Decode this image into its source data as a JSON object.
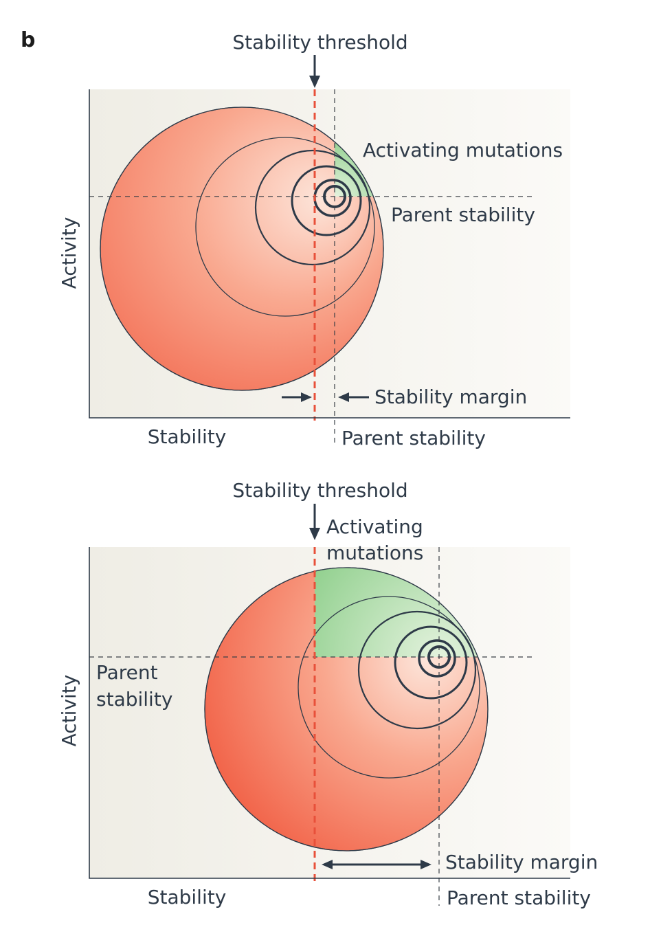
{
  "panel_letter": "b",
  "top_panel": {
    "threshold_label": "Stability threshold",
    "activating_label": "Activating mutations",
    "parent_stability_side_label": "Parent stability",
    "stability_margin_label": "Stability margin",
    "x_axis_label": "Stability",
    "x_parent_label": "Parent stability",
    "y_axis_label": "Activity"
  },
  "bottom_panel": {
    "threshold_label": "Stability threshold",
    "activating_label_line1": "Activating",
    "activating_label_line2": "mutations",
    "parent_stability_line1": "Parent",
    "parent_stability_line2": "stability",
    "stability_margin_label": "Stability margin",
    "x_axis_label": "Stability",
    "x_parent_label": "Parent stability",
    "y_axis_label": "Activity"
  },
  "colors": {
    "destabilized": "#f05a3c",
    "stable_light": "#fde3d8",
    "activating": "#9fd19a",
    "threshold": "#e8503a",
    "ink": "#2e3a48",
    "plot_background": "#f3f1ea"
  }
}
